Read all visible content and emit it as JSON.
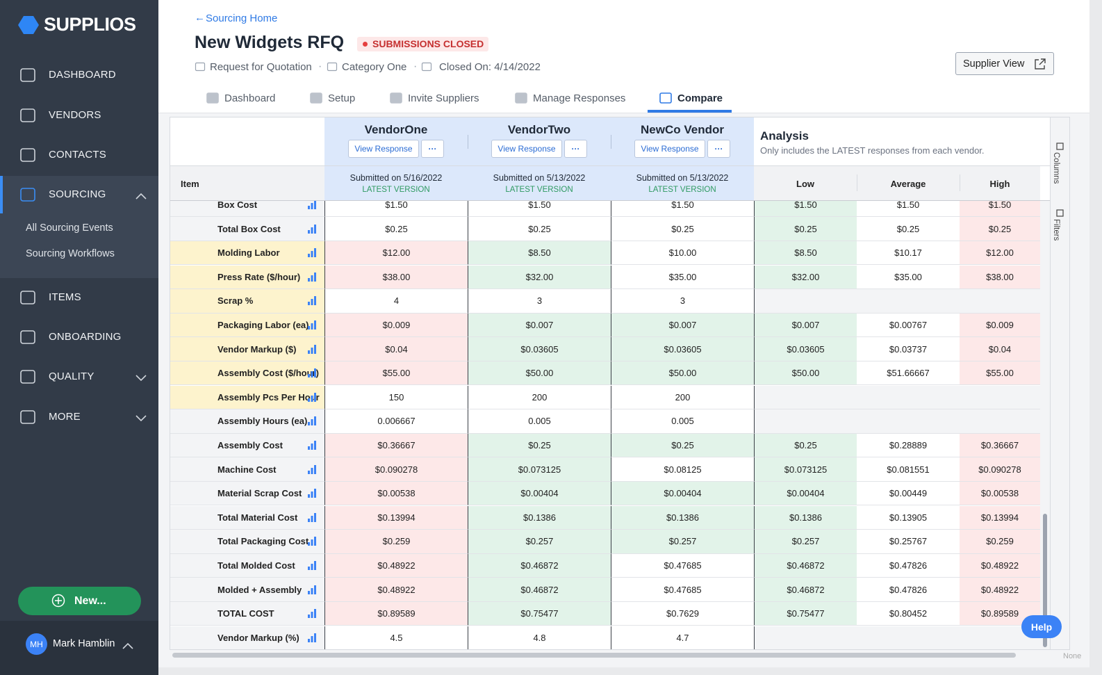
{
  "sidebar": {
    "logo": "SUPPLIOS",
    "active_nav": 3,
    "nav": [
      "DASHBOARD",
      "VENDORS",
      "CONTACTS",
      "SOURCING",
      "ITEMS",
      "ONBOARDING",
      "QUALITY",
      "MORE"
    ],
    "sourcing_links": [
      "All Sourcing Events",
      "Sourcing Workflows"
    ],
    "new_button": "New...",
    "user": {
      "initials": "MH",
      "name": "Mark Hamblin"
    }
  },
  "header": {
    "back_link": "Sourcing Home",
    "title": "New Widgets RFQ",
    "status": "SUBMISSIONS CLOSED",
    "meta": [
      "Request for Quotation",
      "Category One",
      "Closed On: 4/14/2022"
    ],
    "supplier_view": "Supplier View",
    "tabs": [
      "Dashboard",
      "Setup",
      "Invite Suppliers",
      "Manage Responses",
      "Compare"
    ],
    "active_tab": 4
  },
  "table": {
    "item_header": "Item",
    "vendors": [
      {
        "name": "VendorOne",
        "action": "View Response",
        "more": "···",
        "submitted": "Submitted on 5/16/2022",
        "version": "LATEST VERSION"
      },
      {
        "name": "VendorTwo",
        "action": "View Response",
        "more": "···",
        "submitted": "Submitted on 5/13/2022",
        "version": "LATEST VERSION"
      },
      {
        "name": "NewCo Vendor",
        "action": "View Response",
        "more": "···",
        "submitted": "Submitted on 5/13/2022",
        "version": "LATEST VERSION"
      }
    ],
    "analysis": {
      "title": "Analysis",
      "note": "Only includes the LATEST responses from each vendor.",
      "columns": [
        "Low",
        "Average",
        "High"
      ]
    },
    "rows": [
      {
        "item": "Box Cost",
        "input": false,
        "values": [
          "$1.50",
          "$1.50",
          "$1.50"
        ],
        "tones": [
          null,
          null,
          null
        ],
        "analysis": [
          "$1.50",
          "$1.50",
          "$1.50"
        ]
      },
      {
        "item": "Total Box Cost",
        "input": false,
        "values": [
          "$0.25",
          "$0.25",
          "$0.25"
        ],
        "tones": [
          null,
          null,
          null
        ],
        "analysis": [
          "$0.25",
          "$0.25",
          "$0.25"
        ]
      },
      {
        "item": "Molding Labor",
        "input": true,
        "values": [
          "$12.00",
          "$8.50",
          "$10.00"
        ],
        "tones": [
          "high",
          "low",
          null
        ],
        "analysis": [
          "$8.50",
          "$10.17",
          "$12.00"
        ]
      },
      {
        "item": "Press Rate ($/hour)",
        "input": true,
        "values": [
          "$38.00",
          "$32.00",
          "$35.00"
        ],
        "tones": [
          "high",
          "low",
          null
        ],
        "analysis": [
          "$32.00",
          "$35.00",
          "$38.00"
        ]
      },
      {
        "item": "Scrap %",
        "input": true,
        "values": [
          "4",
          "3",
          "3"
        ],
        "tones": [
          null,
          null,
          null
        ]
      },
      {
        "item": "Packaging Labor (ea)",
        "input": true,
        "values": [
          "$0.009",
          "$0.007",
          "$0.007"
        ],
        "tones": [
          "high",
          "low",
          "low"
        ],
        "analysis": [
          "$0.007",
          "$0.00767",
          "$0.009"
        ]
      },
      {
        "item": "Vendor Markup ($)",
        "input": true,
        "values": [
          "$0.04",
          "$0.03605",
          "$0.03605"
        ],
        "tones": [
          "high",
          "low",
          "low"
        ],
        "analysis": [
          "$0.03605",
          "$0.03737",
          "$0.04"
        ]
      },
      {
        "item": "Assembly Cost ($/hour)",
        "input": true,
        "values": [
          "$55.00",
          "$50.00",
          "$50.00"
        ],
        "tones": [
          "high",
          "low",
          "low"
        ],
        "analysis": [
          "$50.00",
          "$51.66667",
          "$55.00"
        ]
      },
      {
        "item": "Assembly Pcs Per Hour",
        "input": true,
        "values": [
          "150",
          "200",
          "200"
        ],
        "tones": [
          null,
          null,
          null
        ]
      },
      {
        "item": "Assembly Hours (ea)",
        "input": false,
        "values": [
          "0.006667",
          "0.005",
          "0.005"
        ],
        "tones": [
          null,
          null,
          null
        ]
      },
      {
        "item": "Assembly Cost",
        "input": false,
        "values": [
          "$0.36667",
          "$0.25",
          "$0.25"
        ],
        "tones": [
          "high",
          "low",
          "low"
        ],
        "analysis": [
          "$0.25",
          "$0.28889",
          "$0.36667"
        ]
      },
      {
        "item": "Machine Cost",
        "input": false,
        "values": [
          "$0.090278",
          "$0.073125",
          "$0.08125"
        ],
        "tones": [
          "high",
          "low",
          null
        ],
        "analysis": [
          "$0.073125",
          "$0.081551",
          "$0.090278"
        ]
      },
      {
        "item": "Material Scrap Cost",
        "input": false,
        "values": [
          "$0.00538",
          "$0.00404",
          "$0.00404"
        ],
        "tones": [
          "high",
          "low",
          "low"
        ],
        "analysis": [
          "$0.00404",
          "$0.00449",
          "$0.00538"
        ]
      },
      {
        "item": "Total Material Cost",
        "input": false,
        "values": [
          "$0.13994",
          "$0.1386",
          "$0.1386"
        ],
        "tones": [
          "high",
          "low",
          "low"
        ],
        "analysis": [
          "$0.1386",
          "$0.13905",
          "$0.13994"
        ]
      },
      {
        "item": "Total Packaging Cost",
        "input": false,
        "values": [
          "$0.259",
          "$0.257",
          "$0.257"
        ],
        "tones": [
          "high",
          "low",
          "low"
        ],
        "analysis": [
          "$0.257",
          "$0.25767",
          "$0.259"
        ]
      },
      {
        "item": "Total Molded Cost",
        "input": false,
        "values": [
          "$0.48922",
          "$0.46872",
          "$0.47685"
        ],
        "tones": [
          "high",
          "low",
          null
        ],
        "analysis": [
          "$0.46872",
          "$0.47826",
          "$0.48922"
        ]
      },
      {
        "item": "Molded + Assembly",
        "input": false,
        "values": [
          "$0.48922",
          "$0.46872",
          "$0.47685"
        ],
        "tones": [
          "high",
          "low",
          null
        ],
        "analysis": [
          "$0.46872",
          "$0.47826",
          "$0.48922"
        ]
      },
      {
        "item": "TOTAL COST",
        "input": false,
        "values": [
          "$0.89589",
          "$0.75477",
          "$0.7629"
        ],
        "tones": [
          "high",
          "low",
          null
        ],
        "analysis": [
          "$0.75477",
          "$0.80452",
          "$0.89589"
        ]
      },
      {
        "item": "Vendor Markup (%)",
        "input": false,
        "values": [
          "4.5",
          "4.8",
          "4.7"
        ],
        "tones": [
          null,
          null,
          null
        ]
      }
    ]
  },
  "side_tabs": [
    "Columns",
    "Filters"
  ],
  "help": "Help",
  "footer_note": "None"
}
